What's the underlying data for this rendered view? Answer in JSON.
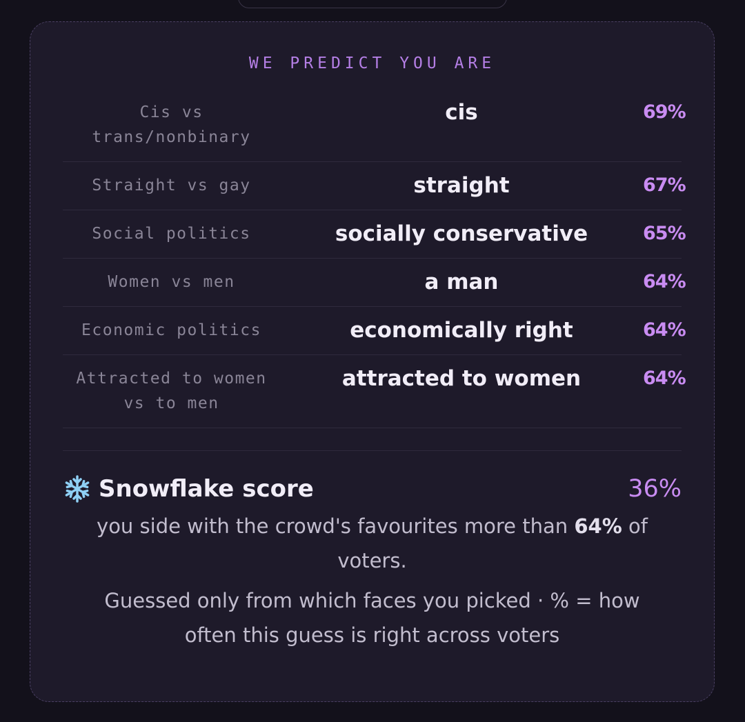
{
  "header": "WE PREDICT YOU ARE",
  "rows": [
    {
      "label": "Cis vs trans/nonbinary",
      "prediction": "cis",
      "percent": "69%"
    },
    {
      "label": "Straight vs gay",
      "prediction": "straight",
      "percent": "67%"
    },
    {
      "label": "Social politics",
      "prediction": "socially conservative",
      "percent": "65%"
    },
    {
      "label": "Women vs men",
      "prediction": "a man",
      "percent": "64%"
    },
    {
      "label": "Economic politics",
      "prediction": "economically right",
      "percent": "64%"
    },
    {
      "label": "Attracted to women vs to men",
      "prediction": "attracted to women",
      "percent": "64%"
    }
  ],
  "snowflake": {
    "title": "Snowflake score",
    "score": "36%",
    "description": {
      "before": "you side with the crowd's favourites more than",
      "highlight": "64%",
      "after": "of voters."
    }
  },
  "footnote": "Guessed only from which faces you picked · % = how often this guess is right across voters"
}
